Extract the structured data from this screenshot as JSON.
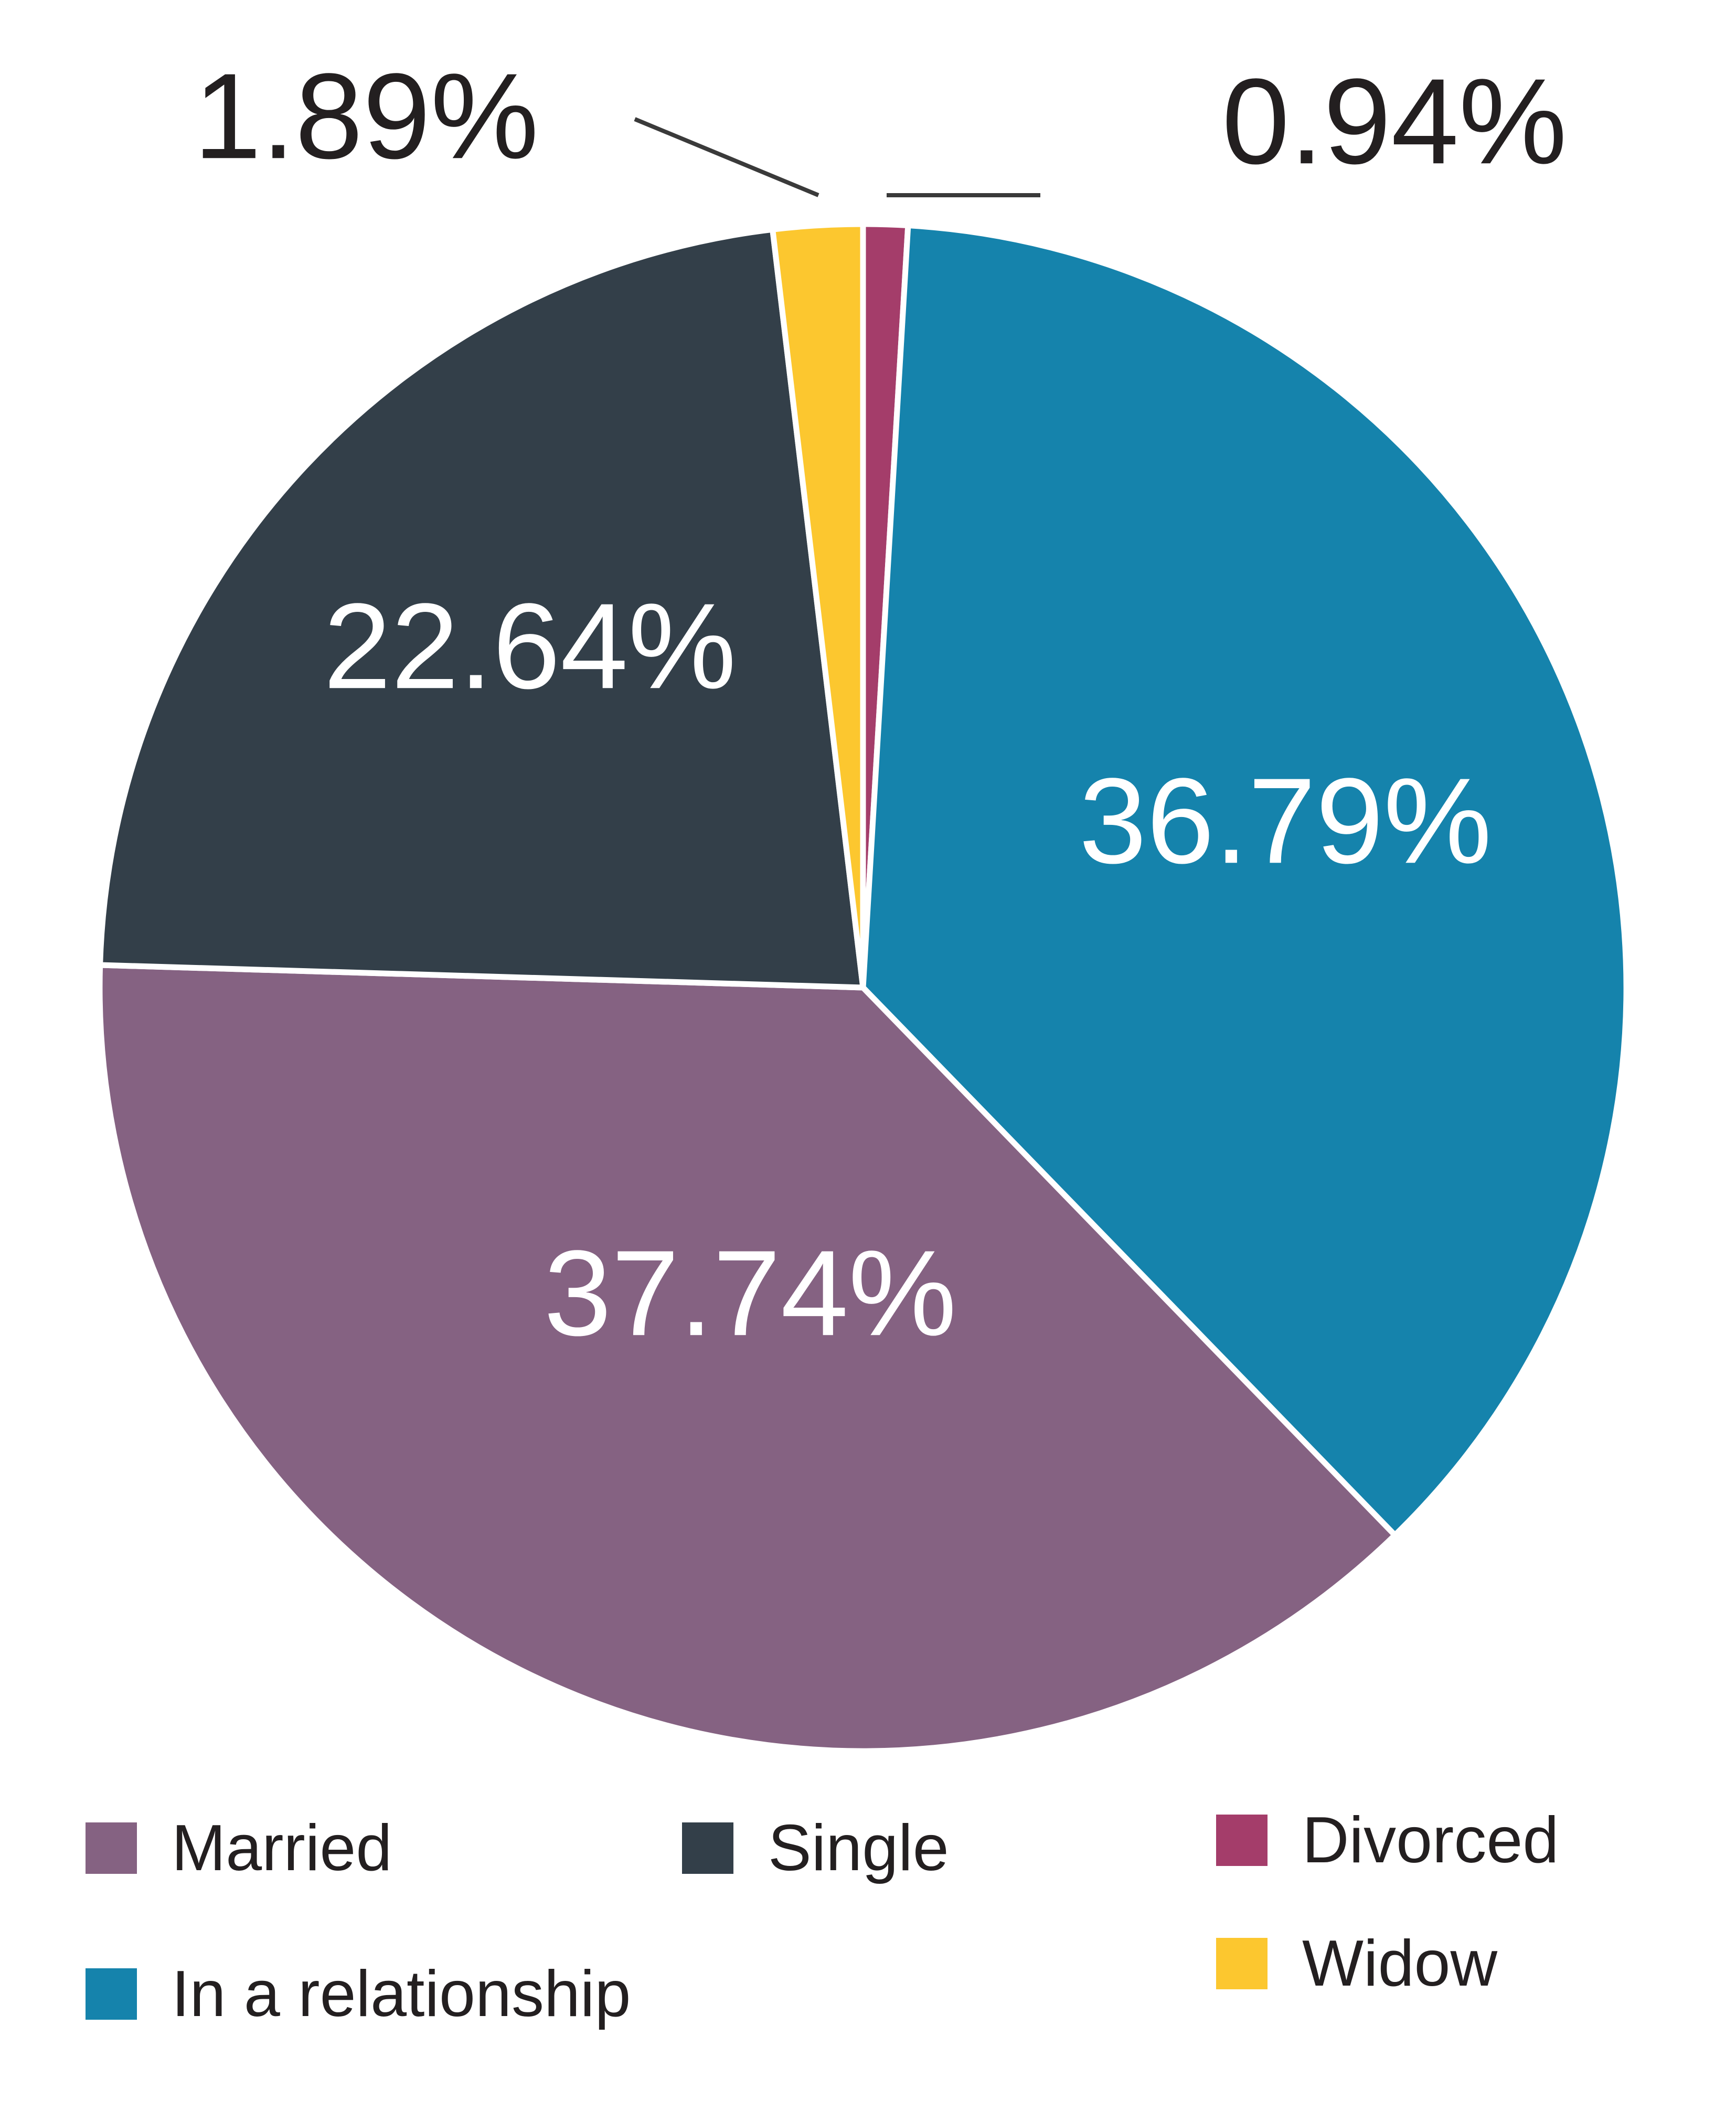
{
  "chart_data": {
    "type": "pie",
    "start_angle_deg": 0,
    "direction": "clockwise",
    "slices": [
      {
        "name": "Divorced",
        "value": 0.94,
        "label": "0.94%",
        "color": "#a43d6a"
      },
      {
        "name": "In a relationship",
        "value": 36.79,
        "label": "36.79%",
        "color": "#1583ac"
      },
      {
        "name": "Married",
        "value": 37.74,
        "label": "37.74%",
        "color": "#856282"
      },
      {
        "name": "Single",
        "value": 22.64,
        "label": "22.64%",
        "color": "#333f49"
      },
      {
        "name": "Widow",
        "value": 1.89,
        "label": "1.89%",
        "color": "#fcc72f"
      }
    ],
    "legend_position": "bottom"
  },
  "legend": {
    "items": [
      {
        "label": "Married",
        "color": "#856282"
      },
      {
        "label": "Single",
        "color": "#333f49"
      },
      {
        "label": "Divorced",
        "color": "#a43d6a"
      },
      {
        "label": "In a relationship",
        "color": "#1583ac"
      },
      {
        "label": "Widow",
        "color": "#fcc72f"
      }
    ]
  }
}
